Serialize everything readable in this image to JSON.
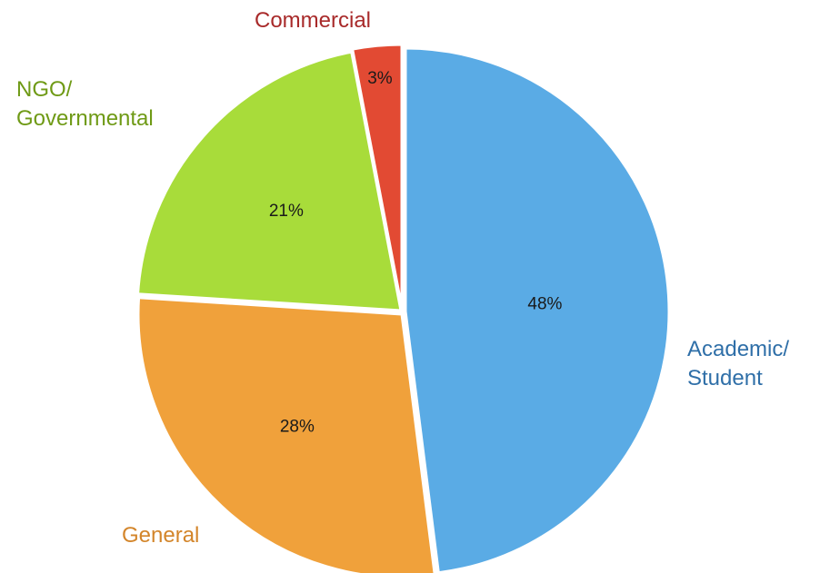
{
  "chart_data": {
    "type": "pie",
    "title": "",
    "slices": [
      {
        "label": "Academic/ Student",
        "label_lines": [
          "Academic/",
          "Student"
        ],
        "value": 48,
        "value_label": "48%",
        "color": "#5aabe5",
        "label_color": "#2f6fa8"
      },
      {
        "label": "General",
        "label_lines": [
          "General"
        ],
        "value": 28,
        "value_label": "28%",
        "color": "#f0a13b",
        "label_color": "#d3852a"
      },
      {
        "label": "NGO/ Governmental",
        "label_lines": [
          "NGO/",
          "Governmental"
        ],
        "value": 21,
        "value_label": "21%",
        "color": "#a8dc3a",
        "label_color": "#6f9a16"
      },
      {
        "label": "Commercial",
        "label_lines": [
          "Commercial"
        ],
        "value": 3,
        "value_label": "3%",
        "color": "#e24a33",
        "label_color": "#a82a2a"
      }
    ],
    "legend": "none",
    "start": "top, clockwise"
  }
}
